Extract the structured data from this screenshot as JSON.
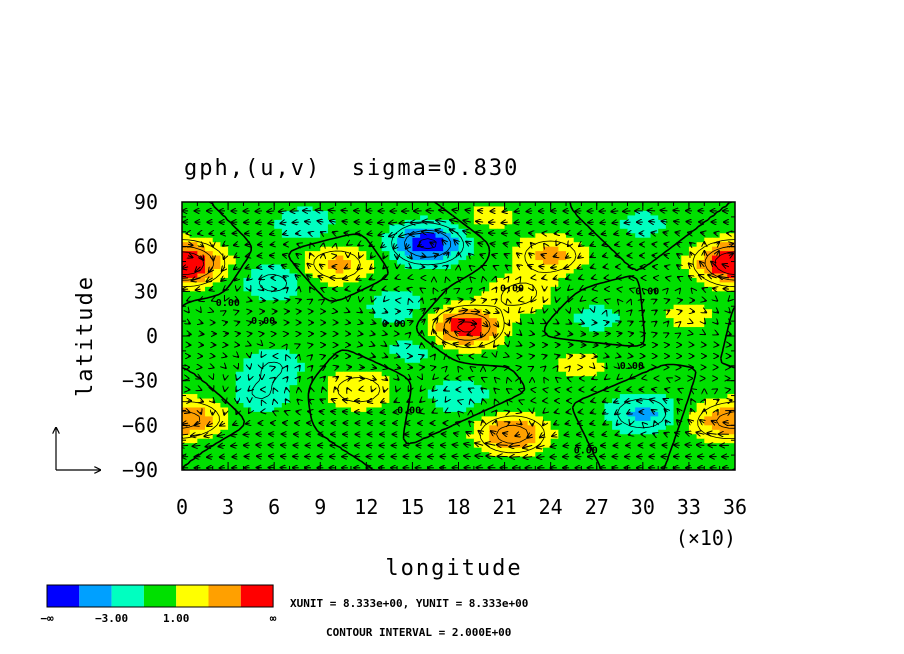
{
  "chart_data": {
    "type": "heatmap",
    "title": "gph,(u,v)  sigma=0.830",
    "xlabel": "longitude",
    "ylabel": "latitude",
    "x_ticks": [
      "0",
      "3",
      "6",
      "9",
      "12",
      "15",
      "18",
      "21",
      "24",
      "27",
      "30",
      "33",
      "36"
    ],
    "x_multiplier": "(×10)",
    "y_ticks": [
      "90",
      "60",
      "30",
      "0",
      "−30",
      "−60",
      "−90"
    ],
    "xlim": [
      0,
      360
    ],
    "ylim": [
      -90,
      90
    ],
    "contour_labels": [
      "0.00",
      "0.00",
      "0.00",
      "0.00",
      "0.00",
      "0.00",
      "0.00",
      "0.00"
    ],
    "colorbar": {
      "colors": [
        "#0000ff",
        "#00a0ff",
        "#00ffc0",
        "#00e000",
        "#ffff00",
        "#ffa000",
        "#ff0000"
      ],
      "labels": [
        "−∞",
        "−3.00",
        "1.00",
        "∞"
      ]
    },
    "units_text": "XUNIT = 8.333e+00, YUNIT = 8.333e+00",
    "contour_interval_text": "CONTOUR INTERVAL = 2.000E+00",
    "anomalies": [
      {
        "lon": 160,
        "lat": 62,
        "value": -6.5
      },
      {
        "lon": 185,
        "lat": 6,
        "value": 6.5
      },
      {
        "lon": 215,
        "lat": -66,
        "value": 5.0
      },
      {
        "lon": 240,
        "lat": 54,
        "value": 3.5
      },
      {
        "lon": 5,
        "lat": 48,
        "value": 5.0
      },
      {
        "lon": 355,
        "lat": 50,
        "value": 4.0
      },
      {
        "lon": 100,
        "lat": 48,
        "value": 3.5
      },
      {
        "lon": 115,
        "lat": -36,
        "value": 3.0
      },
      {
        "lon": 10,
        "lat": -55,
        "value": 3.0
      },
      {
        "lon": 350,
        "lat": -58,
        "value": 3.0
      },
      {
        "lon": 300,
        "lat": -52,
        "value": -3.5
      },
      {
        "lon": 60,
        "lat": 36,
        "value": -2.5
      },
      {
        "lon": 220,
        "lat": 28,
        "value": 2.5
      },
      {
        "lon": 260,
        "lat": -20,
        "value": 1.5
      },
      {
        "lon": 330,
        "lat": 14,
        "value": 1.5
      },
      {
        "lon": 270,
        "lat": 12,
        "value": -1.5
      },
      {
        "lon": 20,
        "lat": 10,
        "value": -1.0
      },
      {
        "lon": 150,
        "lat": -10,
        "value": -1.5
      },
      {
        "lon": 60,
        "lat": -20,
        "value": -2.0
      },
      {
        "lon": 180,
        "lat": -40,
        "value": -2.0
      },
      {
        "lon": 80,
        "lat": 75,
        "value": -2.0
      },
      {
        "lon": 200,
        "lat": 80,
        "value": 1.5
      },
      {
        "lon": 300,
        "lat": 75,
        "value": -1.5
      },
      {
        "lon": 40,
        "lat": -75,
        "value": -1.0
      },
      {
        "lon": 140,
        "lat": 20,
        "value": -2.0
      },
      {
        "lon": 50,
        "lat": -40,
        "value": -2.0
      }
    ]
  }
}
